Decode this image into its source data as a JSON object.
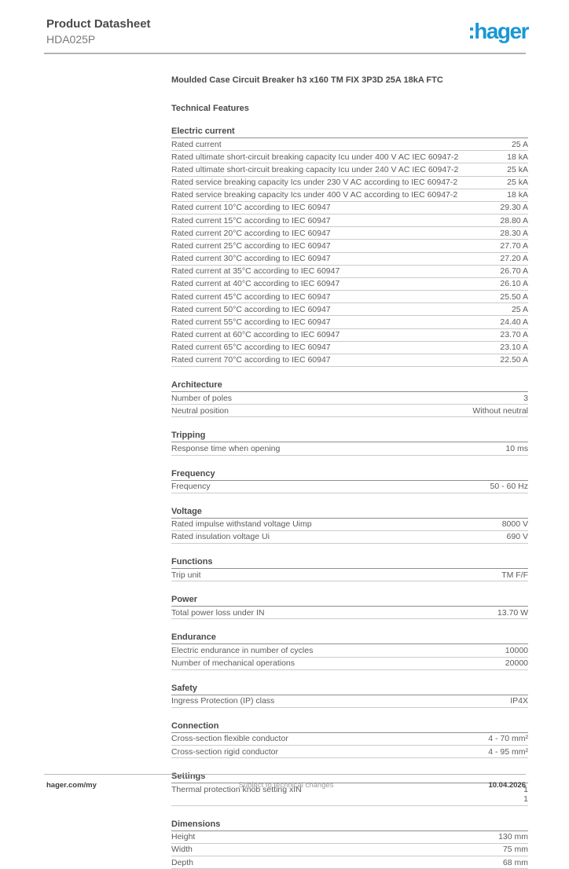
{
  "header": {
    "title": "Product Datasheet",
    "model": "HDA025P",
    "logo_text": ":hager",
    "logo_color": "#1a97d5"
  },
  "document": {
    "product_title": "Moulded Case Circuit Breaker h3 x160 TM FIX 3P3D  25A 18kA FTC",
    "features_heading": "Technical Features",
    "sections": [
      {
        "title": "Electric current",
        "rows": [
          {
            "label": "Rated current",
            "value": "25 A"
          },
          {
            "label": "Rated ultimate short-circuit breaking capacity Icu under 400 V AC IEC 60947-2",
            "value": "18 kA"
          },
          {
            "label": "Rated ultimate short-circuit breaking capacity Icu under 240 V AC IEC 60947-2",
            "value": "25 kA"
          },
          {
            "label": "Rated service breaking capacity Ics under 230 V AC according to IEC 60947-2",
            "value": "25 kA"
          },
          {
            "label": "Rated service breaking capacity Ics under 400 V AC according to IEC 60947-2",
            "value": "18 kA"
          },
          {
            "label": "Rated current 10°C according to IEC 60947",
            "value": "29.30 A"
          },
          {
            "label": "Rated current 15°C according to IEC 60947",
            "value": "28.80 A"
          },
          {
            "label": "Rated current 20°C according to IEC 60947",
            "value": "28.30 A"
          },
          {
            "label": "Rated current 25°C according to IEC 60947",
            "value": "27.70 A"
          },
          {
            "label": "Rated current 30°C according to IEC 60947",
            "value": "27.20 A"
          },
          {
            "label": "Rated current at 35°C according to IEC 60947",
            "value": "26.70 A"
          },
          {
            "label": "Rated current at 40°C according to IEC 60947",
            "value": "26.10 A"
          },
          {
            "label": "Rated current 45°C according to IEC 60947",
            "value": "25.50 A"
          },
          {
            "label": "Rated current 50°C according to IEC 60947",
            "value": "25 A"
          },
          {
            "label": "Rated current 55°C according to IEC 60947",
            "value": "24.40 A"
          },
          {
            "label": "Rated current at 60°C according to IEC 60947",
            "value": "23.70 A"
          },
          {
            "label": "Rated current 65°C according to IEC 60947",
            "value": "23.10 A"
          },
          {
            "label": "Rated current 70°C according to IEC 60947",
            "value": "22.50 A"
          }
        ]
      },
      {
        "title": "Architecture",
        "rows": [
          {
            "label": "Number of poles",
            "value": "3"
          },
          {
            "label": "Neutral position",
            "value": "Without neutral"
          }
        ]
      },
      {
        "title": "Tripping",
        "rows": [
          {
            "label": "Response time when opening",
            "value": "10 ms"
          }
        ]
      },
      {
        "title": "Frequency",
        "rows": [
          {
            "label": "Frequency",
            "value": "50 - 60 Hz"
          }
        ]
      },
      {
        "title": "Voltage",
        "rows": [
          {
            "label": "Rated impulse withstand voltage Uimp",
            "value": "8000 V"
          },
          {
            "label": "Rated insulation voltage Ui",
            "value": "690 V"
          }
        ]
      },
      {
        "title": "Functions",
        "rows": [
          {
            "label": "Trip unit",
            "value": "TM F/F"
          }
        ]
      },
      {
        "title": "Power",
        "rows": [
          {
            "label": "Total power loss under IN",
            "value": "13.70 W"
          }
        ]
      },
      {
        "title": "Endurance",
        "rows": [
          {
            "label": "Electric endurance in number of cycles",
            "value": "10000"
          },
          {
            "label": "Number of mechanical operations",
            "value": "20000"
          }
        ]
      },
      {
        "title": "Safety",
        "rows": [
          {
            "label": "Ingress Protection (IP) class",
            "value": "IP4X"
          }
        ]
      },
      {
        "title": "Connection",
        "rows": [
          {
            "label": "Cross-section flexible conductor",
            "value": "4 - 70 mm²"
          },
          {
            "label": "Cross-section rigid conductor",
            "value": "4 - 95 mm²"
          }
        ]
      },
      {
        "title": "Settings",
        "rows": [
          {
            "label": "Thermal protection knob setting xIN",
            "value": "1\n1"
          }
        ]
      },
      {
        "title": "Dimensions",
        "rows": [
          {
            "label": "Height",
            "value": "130 mm"
          },
          {
            "label": "Width",
            "value": "75 mm"
          },
          {
            "label": "Depth",
            "value": "68 mm"
          }
        ]
      }
    ]
  },
  "footer": {
    "left": "hager.com/my",
    "center": "Subject to technical changes",
    "right": "10.04.2026"
  }
}
